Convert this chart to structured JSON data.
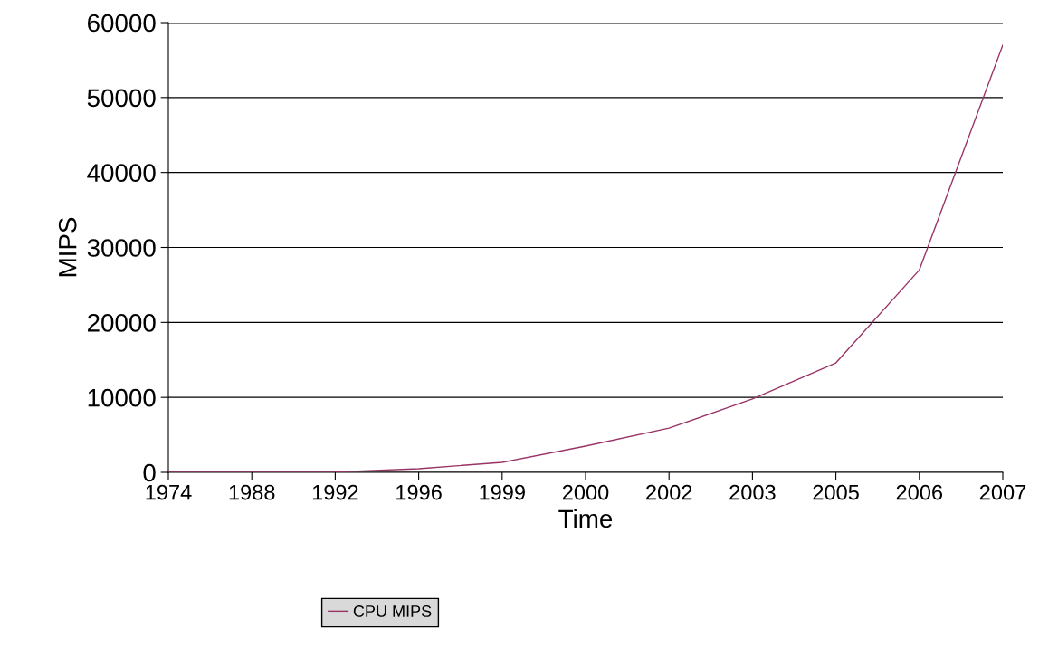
{
  "chart_data": {
    "type": "line",
    "xlabel": "Time",
    "ylabel": "MIPS",
    "categories": [
      "1974",
      "1988",
      "1992",
      "1996",
      "1999",
      "2000",
      "2002",
      "2003",
      "2005",
      "2006",
      "2007"
    ],
    "series": [
      {
        "name": "CPU MIPS",
        "color": "#993366",
        "values": [
          0,
          0,
          50,
          480,
          1330,
          3500,
          5900,
          9800,
          14600,
          27000,
          57000
        ]
      }
    ],
    "ylim": [
      0,
      60000
    ],
    "yticks": [
      0,
      10000,
      20000,
      30000,
      40000,
      50000,
      60000
    ],
    "grid": "y",
    "legend": "bottom",
    "marker": "none",
    "line_style": "solid"
  }
}
